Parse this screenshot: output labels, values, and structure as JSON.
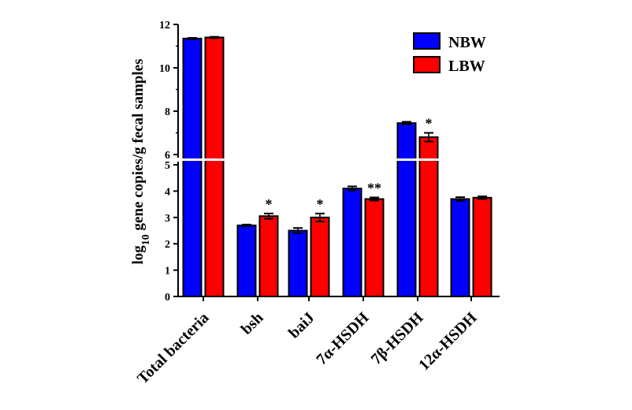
{
  "chart_data": {
    "type": "bar",
    "title": "",
    "xlabel": "",
    "ylabel": {
      "main": "log",
      "sub": "10",
      "rest": " gene copies/g fecal samples"
    },
    "categories": [
      "Total bacteria",
      "bsh",
      "baiJ",
      "7α-HSDH",
      "7β-HSDH",
      "12α-HSDH"
    ],
    "series": [
      {
        "name": "NBW",
        "color": "#0000ff",
        "values": [
          11.35,
          2.7,
          2.5,
          4.1,
          7.45,
          3.7
        ],
        "errors": [
          0.03,
          0.03,
          0.1,
          0.08,
          0.06,
          0.07
        ]
      },
      {
        "name": "LBW",
        "color": "#ff0000",
        "values": [
          11.4,
          3.05,
          3.0,
          3.7,
          6.8,
          3.75
        ],
        "errors": [
          0.03,
          0.1,
          0.15,
          0.06,
          0.2,
          0.05
        ]
      }
    ],
    "significance": [
      {
        "category": "bsh",
        "label": "*"
      },
      {
        "category": "baiJ",
        "label": "*"
      },
      {
        "category": "7α-HSDH",
        "label": "**"
      },
      {
        "category": "7β-HSDH",
        "label": "*"
      }
    ],
    "y_axis": {
      "broken": true,
      "lower_segment": {
        "ylim": [
          0,
          5
        ],
        "ticks": [
          0,
          1,
          2,
          3,
          4,
          5
        ]
      },
      "upper_segment": {
        "ylim": [
          6,
          12
        ],
        "ticks": [
          6,
          8,
          10,
          12
        ]
      }
    },
    "legend": {
      "placement": "top-right"
    },
    "grid": false
  }
}
